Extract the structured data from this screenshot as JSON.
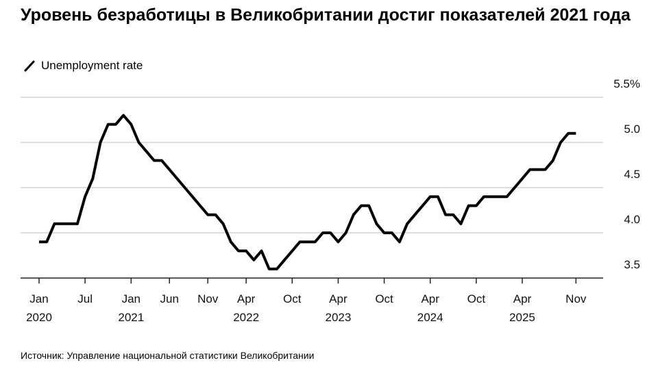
{
  "chart_data": {
    "type": "line",
    "title": "Уровень безработицы в Великобритании достиг показателей 2021 года",
    "legend": "Unemployment rate",
    "source": "Источник: Управление национальной статистики Великобритании",
    "x_start": "2020-01",
    "x_end": "2025-11",
    "frequency": "monthly",
    "ylim": [
      3.5,
      5.5
    ],
    "y_ticks": [
      {
        "value": 5.5,
        "label": "5.5%"
      },
      {
        "value": 5.0,
        "label": "5.0"
      },
      {
        "value": 4.5,
        "label": "4.5"
      },
      {
        "value": 4.0,
        "label": "4.0"
      },
      {
        "value": 3.5,
        "label": "3.5"
      }
    ],
    "x_ticks": [
      {
        "month": "2020-01",
        "label": "Jan",
        "year": "2020"
      },
      {
        "month": "2020-07",
        "label": "Jul",
        "year": ""
      },
      {
        "month": "2021-01",
        "label": "Jan",
        "year": "2021"
      },
      {
        "month": "2021-06",
        "label": "Jun",
        "year": ""
      },
      {
        "month": "2021-11",
        "label": "Nov",
        "year": ""
      },
      {
        "month": "2022-04",
        "label": "Apr",
        "year": "2022"
      },
      {
        "month": "2022-10",
        "label": "Oct",
        "year": ""
      },
      {
        "month": "2023-04",
        "label": "Apr",
        "year": "2023"
      },
      {
        "month": "2023-10",
        "label": "Oct",
        "year": ""
      },
      {
        "month": "2024-04",
        "label": "Apr",
        "year": "2024"
      },
      {
        "month": "2024-10",
        "label": "Oct",
        "year": ""
      },
      {
        "month": "2025-04",
        "label": "Apr",
        "year": "2025"
      },
      {
        "month": "2025-11",
        "label": "Nov",
        "year": ""
      }
    ],
    "grid": true,
    "legend_placement": "top-left",
    "line_color": "#000000",
    "grid_color": "#dddddd",
    "series": [
      {
        "name": "Unemployment rate",
        "values": [
          3.9,
          3.9,
          4.1,
          4.1,
          4.1,
          4.1,
          4.4,
          4.6,
          5.0,
          5.2,
          5.2,
          5.3,
          5.2,
          5.0,
          4.9,
          4.8,
          4.8,
          4.7,
          4.6,
          4.5,
          4.4,
          4.3,
          4.2,
          4.2,
          4.1,
          3.9,
          3.8,
          3.8,
          3.7,
          3.8,
          3.6,
          3.6,
          3.7,
          3.8,
          3.9,
          3.9,
          3.9,
          4.0,
          4.0,
          3.9,
          4.0,
          4.2,
          4.3,
          4.3,
          4.1,
          4.0,
          4.0,
          3.9,
          4.1,
          4.2,
          4.3,
          4.4,
          4.4,
          4.2,
          4.2,
          4.1,
          4.3,
          4.3,
          4.4,
          4.4,
          4.4,
          4.4,
          4.5,
          4.6,
          4.7,
          4.7,
          4.7,
          4.8,
          5.0,
          5.1,
          5.1
        ]
      }
    ]
  }
}
